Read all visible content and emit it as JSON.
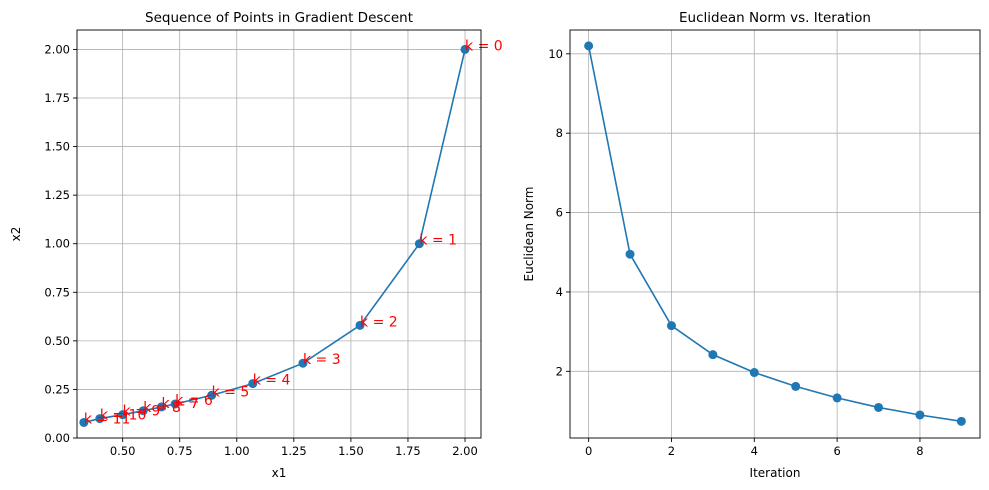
{
  "colors": {
    "series": "#1f77b4",
    "annotation": "#ff0000",
    "grid": "#b0b0b0"
  },
  "chart_data": [
    {
      "type": "line",
      "title": "Sequence of Points in Gradient Descent",
      "xlabel": "x1",
      "ylabel": "x2",
      "xlim": [
        0.3,
        2.07
      ],
      "ylim": [
        0.0,
        2.1
      ],
      "xticks": [
        0.5,
        0.75,
        1.0,
        1.25,
        1.5,
        1.75,
        2.0
      ],
      "xtick_labels": [
        "0.50",
        "0.75",
        "1.00",
        "1.25",
        "1.50",
        "1.75",
        "2.00"
      ],
      "yticks": [
        0.0,
        0.25,
        0.5,
        0.75,
        1.0,
        1.25,
        1.5,
        1.75,
        2.0
      ],
      "ytick_labels": [
        "0.00",
        "0.25",
        "0.50",
        "0.75",
        "1.00",
        "1.25",
        "1.50",
        "1.75",
        "2.00"
      ],
      "grid": true,
      "marker": "circle",
      "points": [
        {
          "x": 2.0,
          "y": 2.0,
          "label": "k = 0"
        },
        {
          "x": 1.8,
          "y": 1.0,
          "label": "k = 1"
        },
        {
          "x": 1.54,
          "y": 0.58,
          "label": "k = 2"
        },
        {
          "x": 1.29,
          "y": 0.385,
          "label": "k = 3"
        },
        {
          "x": 1.07,
          "y": 0.28,
          "label": "k = 4"
        },
        {
          "x": 0.89,
          "y": 0.22,
          "label": "k = 5"
        },
        {
          "x": 0.73,
          "y": 0.175,
          "label": "k = 6"
        },
        {
          "x": 0.67,
          "y": 0.16,
          "label": "k = 7"
        },
        {
          "x": 0.59,
          "y": 0.14,
          "label": "k = 8"
        },
        {
          "x": 0.5,
          "y": 0.12,
          "label": "k = 9"
        },
        {
          "x": 0.4,
          "y": 0.1,
          "label": "k = 10"
        },
        {
          "x": 0.33,
          "y": 0.08,
          "label": "k = 11"
        }
      ]
    },
    {
      "type": "line",
      "title": "Euclidean Norm vs. Iteration",
      "xlabel": "Iteration",
      "ylabel": "Euclidean Norm",
      "xlim": [
        -0.45,
        9.45
      ],
      "ylim": [
        0.32,
        10.6
      ],
      "xticks": [
        0,
        2,
        4,
        6,
        8
      ],
      "xtick_labels": [
        "0",
        "2",
        "4",
        "6",
        "8"
      ],
      "yticks": [
        2,
        4,
        6,
        8,
        10
      ],
      "ytick_labels": [
        "2",
        "4",
        "6",
        "8",
        "10"
      ],
      "grid": true,
      "marker": "circle",
      "x": [
        0,
        1,
        2,
        3,
        4,
        5,
        6,
        7,
        8,
        9
      ],
      "y": [
        10.2,
        4.95,
        3.15,
        2.42,
        1.97,
        1.62,
        1.33,
        1.09,
        0.9,
        0.74
      ]
    }
  ]
}
